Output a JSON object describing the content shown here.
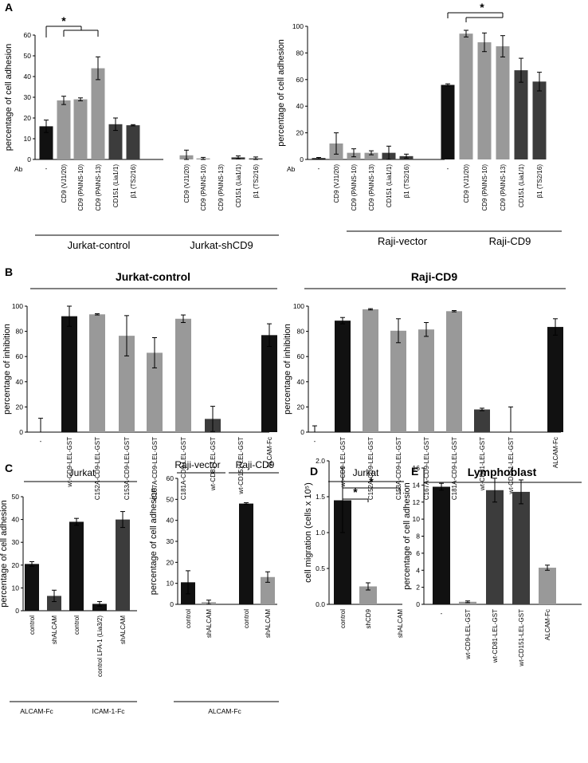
{
  "colors": {
    "black": "#111111",
    "light": "#999999",
    "dark": "#3c3c3c",
    "mid": "#555555"
  },
  "chart_data": [
    {
      "id": "A1",
      "panel": "A",
      "type": "bar",
      "ylabel": "percentage of cell adhesion",
      "ylim": [
        0,
        60
      ],
      "yticks": [
        0,
        10,
        20,
        30,
        40,
        50,
        60
      ],
      "ab_label": "Ab",
      "categories": [
        "-",
        "CD9 (VJ1/20)",
        "CD9 (PAINS-10)",
        "CD9 (PAINS-13)",
        "CD151 (Lia1/1)",
        "β1 (TS2/16)",
        "CD9 (VJ1/20)",
        "CD9 (PAINS-10)",
        "CD9 (PAINS-13)",
        "CD151 (Lia1/1)",
        "β1 (TS2/16)"
      ],
      "values": [
        16,
        28.5,
        29,
        44,
        17,
        16.5,
        2,
        0.5,
        0,
        1,
        0.5
      ],
      "errors": [
        3,
        2,
        0.7,
        5.5,
        3,
        0.3,
        2.5,
        0.5,
        0,
        0.7,
        0.7
      ],
      "bar_colors": [
        "black",
        "light",
        "light",
        "light",
        "dark",
        "dark",
        "light",
        "light",
        "light",
        "dark",
        "dark"
      ],
      "groups": [
        {
          "label": "Jurkat-control"
        },
        {
          "label": "Jurkat-shCD9"
        }
      ],
      "sig": "*"
    },
    {
      "id": "A2",
      "panel": "",
      "type": "bar",
      "ylabel": "percentage of cell adhesion",
      "ylim": [
        0,
        100
      ],
      "yticks": [
        0,
        20,
        40,
        60,
        80,
        100
      ],
      "ab_label": "Ab",
      "categories": [
        "-",
        "CD9 (VJ1/20)",
        "CD9 (PAINS-10)",
        "CD9 (PAINS-13)",
        "CD151 (Lia1/1)",
        "β1 (TS2/16)",
        "-",
        "CD9 (VJ1/20)",
        "CD9 (PAINS-10)",
        "CD9 (PAINS-13)",
        "CD151 (Lia1/1)",
        "β1 (TS2/16)"
      ],
      "values": [
        1,
        12,
        5,
        5,
        5,
        2.5,
        56,
        94.5,
        88,
        85,
        67,
        58.5
      ],
      "errors": [
        0.5,
        8,
        3,
        1.5,
        5,
        1.5,
        0.8,
        2.5,
        7,
        8,
        9,
        7
      ],
      "bar_colors": [
        "black",
        "light",
        "light",
        "light",
        "dark",
        "dark",
        "black",
        "light",
        "light",
        "light",
        "dark",
        "dark"
      ],
      "groups": [
        {
          "label": "Raji-vector"
        },
        {
          "label": "Raji-CD9"
        }
      ],
      "sig": "*"
    },
    {
      "id": "B1",
      "panel": "B",
      "type": "bar",
      "title": "Jurkat-control",
      "ylabel": "percentage of inhibition",
      "ylim": [
        0,
        100
      ],
      "yticks": [
        0,
        20,
        40,
        60,
        80,
        100
      ],
      "categories": [
        "-",
        "wt-CD9-LEL-GST",
        "C152A-CD9-LEL-GST",
        "C153A-CD9-LEL-GST",
        "C167A-CD9-LEL-GST",
        "C181A-CD9-LEL-GST",
        "wt-CD81-LEL-GST",
        "wt-CD151-LEL-GST",
        "ALCAM-Fc"
      ],
      "values": [
        0,
        92,
        93.5,
        76.5,
        63,
        90,
        10.5,
        0,
        77
      ],
      "errors": [
        11,
        8,
        0.5,
        16,
        12,
        3,
        10,
        0,
        9
      ],
      "bar_colors": [
        "black",
        "black",
        "light",
        "light",
        "light",
        "light",
        "dark",
        "dark",
        "black"
      ]
    },
    {
      "id": "B2",
      "panel": "",
      "type": "bar",
      "title": "Raji-CD9",
      "ylabel": "percentage of inhibition",
      "ylim": [
        0,
        100
      ],
      "yticks": [
        0,
        20,
        40,
        60,
        80,
        100
      ],
      "categories": [
        "-",
        "wt-CD9-LEL-GST",
        "C152A-CD9-LEL-GST",
        "C153A-CD9-LEL-GST",
        "C167A-CD9-LEL-GST",
        "C181A-CD9-LEL-GST",
        "wt-CD81-LEL-GST",
        "wt-CD151-LEL-GST",
        "ALCAM-Fc"
      ],
      "values": [
        0,
        88.5,
        97.5,
        80.5,
        81.5,
        96,
        18,
        0,
        83.5
      ],
      "errors": [
        5,
        2.5,
        0.5,
        9.5,
        5.5,
        0.5,
        1,
        20,
        6.5
      ],
      "bar_colors": [
        "black",
        "black",
        "light",
        "light",
        "light",
        "light",
        "dark",
        "dark",
        "black"
      ]
    },
    {
      "id": "C1",
      "panel": "C",
      "type": "bar",
      "title": "Jurkat",
      "ylabel": "percentage of cell adhesion",
      "ylim": [
        0,
        50
      ],
      "yticks": [
        0,
        10,
        20,
        30,
        40,
        50
      ],
      "categories": [
        "control",
        "shALCAM",
        "control",
        "control LFA-1 (Lia3/2)",
        "shALCAM"
      ],
      "values": [
        20.5,
        6.5,
        39,
        3,
        40
      ],
      "errors": [
        1,
        2.5,
        1.5,
        1,
        3.5
      ],
      "bar_colors": [
        "black",
        "dark",
        "black",
        "black",
        "dark"
      ],
      "groups": [
        {
          "label": "ALCAM-Fc"
        },
        {
          "label": "ICAM-1-Fc"
        }
      ]
    },
    {
      "id": "C2",
      "panel": "",
      "type": "bar",
      "ylabel": "percentage of cell adhesion",
      "ylim": [
        0,
        60
      ],
      "yticks": [
        0,
        10,
        20,
        30,
        40,
        50,
        60
      ],
      "categories": [
        "control",
        "shALCAM",
        "control",
        "shALCAM"
      ],
      "values": [
        10.5,
        1,
        48,
        13
      ],
      "errors": [
        5.5,
        1,
        0.4,
        2.5
      ],
      "bar_colors": [
        "black",
        "light",
        "black",
        "light"
      ],
      "titles": [
        {
          "label": "Raji-vector"
        },
        {
          "label": "Raji-CD9"
        }
      ],
      "footer": "ALCAM-Fc"
    },
    {
      "id": "D",
      "panel": "D",
      "type": "bar",
      "title": "Jurkat",
      "ylabel": "cell migration (cells x 10⁵)",
      "ylim": [
        0,
        2
      ],
      "yticks": [
        "0.0",
        "0.5",
        "1.0",
        "1.5",
        "2.0"
      ],
      "categories": [
        "control",
        "shCD9",
        "shALCAM"
      ],
      "values": [
        1.45,
        0.25,
        0
      ],
      "errors": [
        0.45,
        0.05,
        0
      ],
      "bar_colors": [
        "black",
        "light",
        "light"
      ],
      "sig": "*"
    },
    {
      "id": "E",
      "panel": "E",
      "type": "bar",
      "title": "Lymphoblast",
      "ylabel": "percentage of cell adhesion",
      "ylim": [
        0,
        16
      ],
      "yticks": [
        0,
        2,
        4,
        6,
        8,
        10,
        12,
        14,
        16
      ],
      "categories": [
        "-",
        "wt-CD9-LEL-GST",
        "wt-CD81-LEL-GST",
        "wt-CD151-LEL-GST",
        "ALCAM-Fc"
      ],
      "values": [
        13.8,
        0.3,
        13.4,
        13.2,
        4.3
      ],
      "errors": [
        0.4,
        0.1,
        1.4,
        1.4,
        0.3
      ],
      "bar_colors": [
        "black",
        "light",
        "dark",
        "dark",
        "light"
      ]
    }
  ]
}
